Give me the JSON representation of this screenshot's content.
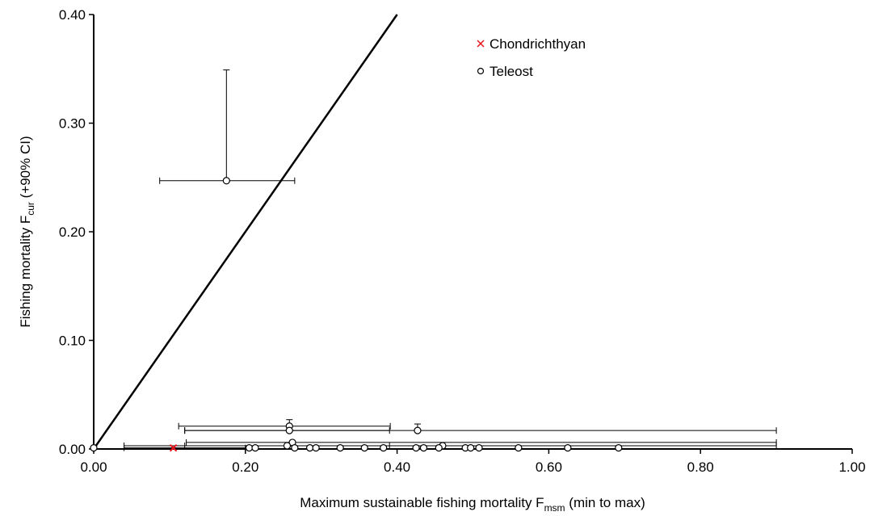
{
  "chart_data": {
    "type": "scatter",
    "x_label": [
      "Maximum sustainable fishing mortality F",
      "msm",
      " (min to max)"
    ],
    "y_label": [
      "Fishing mortality F",
      "cur",
      " (+90% CI)"
    ],
    "xlim": [
      0,
      1
    ],
    "ylim": [
      0,
      0.4
    ],
    "xticks": [
      {
        "value": 0,
        "label": "0.00"
      },
      {
        "value": 0.2,
        "label": "0.20"
      },
      {
        "value": 0.4,
        "label": "0.40"
      },
      {
        "value": 0.6,
        "label": "0.60"
      },
      {
        "value": 0.8,
        "label": "0.80"
      },
      {
        "value": 1,
        "label": "1.00"
      }
    ],
    "yticks": [
      {
        "value": 0,
        "label": "0.00"
      },
      {
        "value": 0.1,
        "label": "0.10"
      },
      {
        "value": 0.2,
        "label": "0.20"
      },
      {
        "value": 0.3,
        "label": "0.30"
      },
      {
        "value": 0.4,
        "label": "0.40"
      }
    ],
    "grid": false,
    "legend": "upper right",
    "reference_line": {
      "x": [
        0,
        0.4
      ],
      "y": [
        0,
        0.4
      ],
      "color": "#000000"
    },
    "series": [
      {
        "name": "Chondrichthyan",
        "color": "#e8141c",
        "marker": "x",
        "x": [
          0.105
        ],
        "values": [
          0.001
        ],
        "x_min": [
          0.04
        ],
        "x_max": [
          0.2
        ],
        "y_upper": [
          null
        ]
      },
      {
        "name": "Teleost",
        "color": "#000000",
        "marker": "o",
        "x": [
          0.175,
          0.258,
          0.258,
          0.427,
          0.0,
          0.262,
          0.255,
          0.46,
          0.205,
          0.213,
          0.265,
          0.285,
          0.293,
          0.325,
          0.357,
          0.382,
          0.425,
          0.435,
          0.455,
          0.49,
          0.497,
          0.508,
          0.56,
          0.625,
          0.692
        ],
        "values": [
          0.247,
          0.021,
          0.017,
          0.017,
          0.001,
          0.006,
          0.003,
          0.003,
          0.001,
          0.001,
          0.001,
          0.001,
          0.001,
          0.001,
          0.001,
          0.001,
          0.001,
          0.001,
          0.001,
          0.001,
          0.001,
          0.001,
          0.001,
          0.001,
          0.001
        ],
        "x_min": [
          0.087,
          0.112,
          0.12,
          0.12,
          null,
          0.122,
          0.04,
          0.12,
          null,
          null,
          null,
          null,
          null,
          null,
          null,
          null,
          null,
          null,
          null,
          null,
          null,
          null,
          null,
          null,
          null
        ],
        "x_max": [
          0.265,
          0.391,
          0.39,
          0.9,
          null,
          0.9,
          0.39,
          0.9,
          null,
          null,
          null,
          null,
          null,
          null,
          null,
          null,
          null,
          null,
          null,
          null,
          null,
          null,
          null,
          null,
          null
        ],
        "y_upper": [
          0.349,
          0.027,
          null,
          0.023,
          null,
          null,
          null,
          null,
          null,
          null,
          null,
          null,
          null,
          null,
          null,
          null,
          null,
          null,
          null,
          null,
          null,
          null,
          null,
          null,
          null
        ]
      }
    ]
  }
}
